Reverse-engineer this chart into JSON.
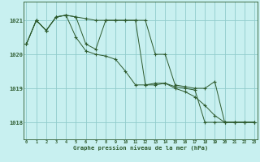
{
  "background_color": "#c8f0f0",
  "plot_bg": "#c8f0f0",
  "grid_color": "#90cccc",
  "line_color": "#2d5a2d",
  "xlabel": "Graphe pression niveau de la mer (hPa)",
  "x_ticks": [
    0,
    1,
    2,
    3,
    4,
    5,
    6,
    7,
    8,
    9,
    10,
    11,
    12,
    13,
    14,
    15,
    16,
    17,
    18,
    19,
    20,
    21,
    22,
    23
  ],
  "yticks": [
    1018,
    1019,
    1020,
    1021
  ],
  "ylim": [
    1017.5,
    1021.55
  ],
  "xlim": [
    -0.3,
    23.3
  ],
  "s1": [
    1020.3,
    1021.0,
    1020.7,
    1021.1,
    1021.15,
    1021.1,
    1021.05,
    1021.0,
    1021.0,
    1021.0,
    1021.0,
    1021.0,
    1021.0,
    1020.0,
    1020.0,
    1019.1,
    1019.05,
    1019.0,
    1019.0,
    1019.2,
    1018.0,
    1018.0,
    1018.0,
    1018.0
  ],
  "s2": [
    1020.3,
    1021.0,
    1020.7,
    1021.1,
    1021.15,
    1021.1,
    1020.3,
    1020.15,
    1021.0,
    1021.0,
    1021.0,
    1021.0,
    1019.1,
    1019.1,
    1019.15,
    1019.05,
    1019.0,
    1018.95,
    1018.0,
    1018.0,
    1018.0,
    1018.0,
    1018.0,
    1018.0
  ],
  "s3": [
    1020.3,
    1021.0,
    1020.7,
    1021.1,
    1021.15,
    1020.5,
    1020.1,
    1020.0,
    1019.95,
    1019.85,
    1019.5,
    1019.1,
    1019.1,
    1019.15,
    1019.15,
    1019.0,
    1018.9,
    1018.75,
    1018.5,
    1018.2,
    1018.0,
    1018.0,
    1018.0,
    1018.0
  ]
}
